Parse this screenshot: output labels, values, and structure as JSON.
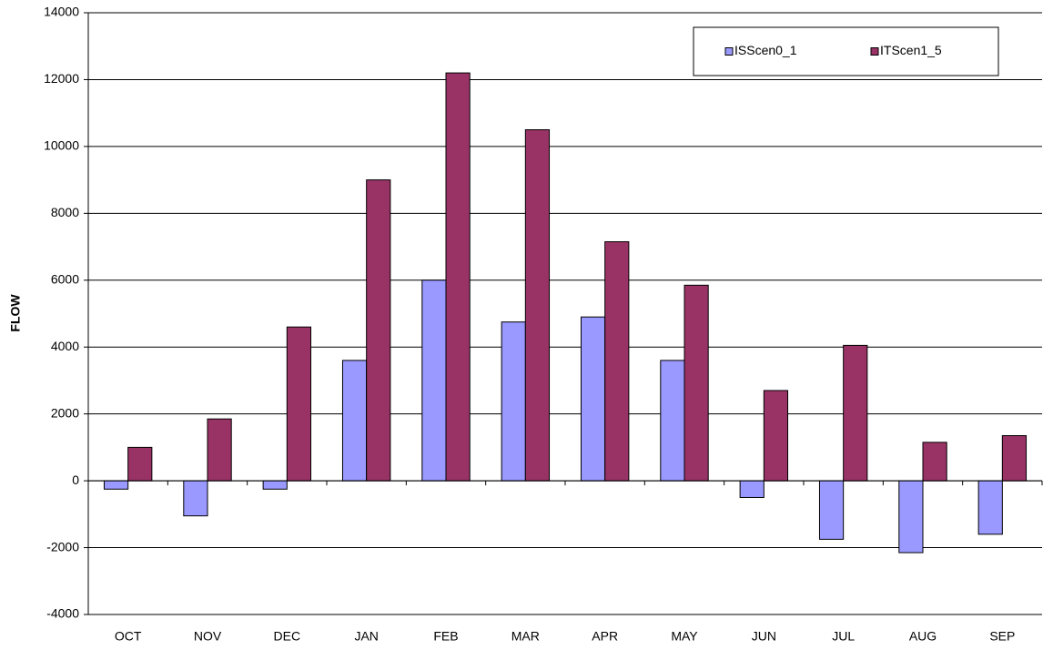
{
  "chart_data": {
    "type": "bar",
    "y_label": "FLOW",
    "categories": [
      "OCT",
      "NOV",
      "DEC",
      "JAN",
      "FEB",
      "MAR",
      "APR",
      "MAY",
      "JUN",
      "JUL",
      "AUG",
      "SEP"
    ],
    "series": [
      {
        "name": "ISScen0_1",
        "color": "#9999ff",
        "values": [
          -250,
          -1050,
          -250,
          3600,
          6000,
          4750,
          4900,
          3600,
          -500,
          -1750,
          -2150,
          -1600
        ]
      },
      {
        "name": "ITScen1_5",
        "color": "#993366",
        "values": [
          1000,
          1850,
          4600,
          9000,
          12200,
          10500,
          7150,
          5850,
          2700,
          4050,
          1150,
          1350
        ]
      }
    ],
    "ylim": [
      -4000,
      14000
    ],
    "yticks": [
      -4000,
      -2000,
      0,
      2000,
      4000,
      6000,
      8000,
      10000,
      12000,
      14000
    ],
    "grid": true,
    "legend": "top-right"
  }
}
